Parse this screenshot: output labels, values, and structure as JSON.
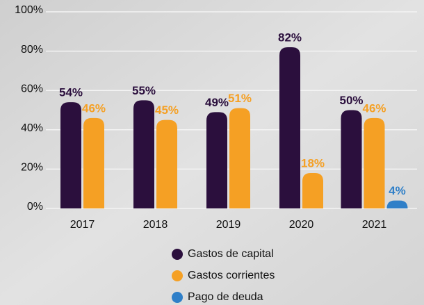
{
  "chart_data": {
    "type": "bar",
    "categories": [
      "2017",
      "2018",
      "2019",
      "2020",
      "2021"
    ],
    "series": [
      {
        "name": "Gastos de capital",
        "color": "#2b0f3d",
        "values": [
          54,
          55,
          49,
          82,
          50
        ],
        "value_labels": [
          "54%",
          "55%",
          "49%",
          "82%",
          "50%"
        ]
      },
      {
        "name": "Gastos corrientes",
        "color": "#f5a024",
        "values": [
          46,
          45,
          51,
          18,
          46
        ],
        "value_labels": [
          "46%",
          "45%",
          "51%",
          "18%",
          "46%"
        ]
      },
      {
        "name": "Pago de deuda",
        "color": "#2f7fc8",
        "values": [
          null,
          null,
          null,
          null,
          4
        ],
        "value_labels": [
          null,
          null,
          null,
          null,
          "4%"
        ]
      }
    ],
    "ylim": [
      0,
      100
    ],
    "yticks": [
      {
        "value": 0,
        "label": "0%"
      },
      {
        "value": 20,
        "label": "20%"
      },
      {
        "value": 40,
        "label": "40%"
      },
      {
        "value": 60,
        "label": "60%"
      },
      {
        "value": 80,
        "label": "80%"
      },
      {
        "value": 100,
        "label": "100%"
      }
    ],
    "grid": true
  }
}
